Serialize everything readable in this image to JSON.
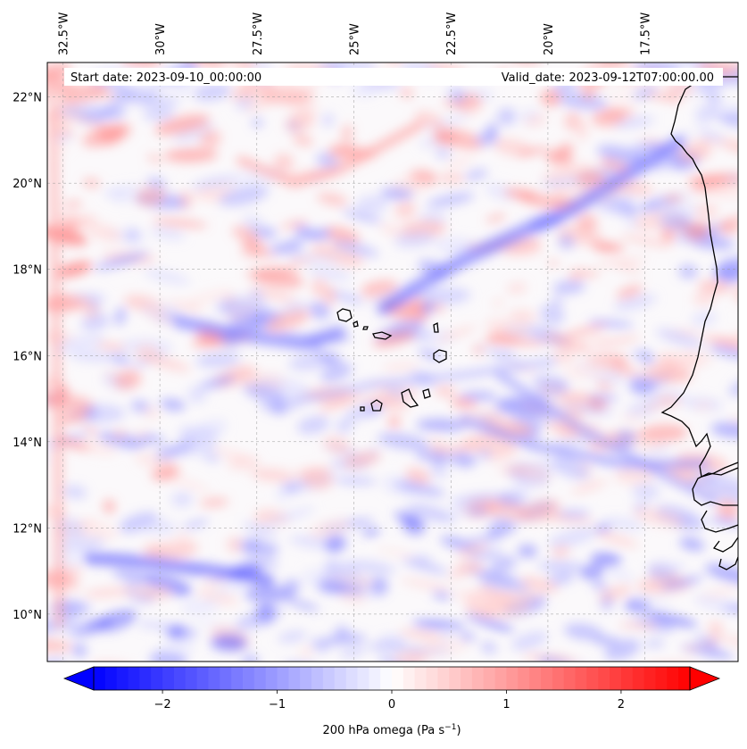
{
  "header": {
    "start_date": "Start date: 2023-09-10_00:00:00",
    "valid_date": "Valid_date: 2023-09-12T07:00:00.00"
  },
  "map": {
    "projection": "lat-lon",
    "lon_range": [
      -32.9,
      -15.1
    ],
    "lat_range": [
      8.9,
      22.8
    ],
    "gridlines": true,
    "lon_ticks": [
      {
        "value": -32.5,
        "label": "32.5°W"
      },
      {
        "value": -30,
        "label": "30°W"
      },
      {
        "value": -27.5,
        "label": "27.5°W"
      },
      {
        "value": -25,
        "label": "25°W"
      },
      {
        "value": -22.5,
        "label": "22.5°W"
      },
      {
        "value": -20,
        "label": "20°W"
      },
      {
        "value": -17.5,
        "label": "17.5°W"
      }
    ],
    "lat_ticks": [
      {
        "value": 22,
        "label": "22°N"
      },
      {
        "value": 20,
        "label": "20°N"
      },
      {
        "value": 18,
        "label": "18°N"
      },
      {
        "value": 16,
        "label": "16°N"
      },
      {
        "value": 14,
        "label": "14°N"
      },
      {
        "value": 12,
        "label": "12°N"
      },
      {
        "value": 10,
        "label": "10°N"
      }
    ],
    "features": [
      "coastline-west-africa",
      "cape-verde-islands"
    ]
  },
  "colorbar": {
    "colormap": "bwr",
    "min": -2.6,
    "max": 2.6,
    "extend": "both",
    "ticks": [
      {
        "value": -2,
        "label": "−2"
      },
      {
        "value": -1,
        "label": "−1"
      },
      {
        "value": 0,
        "label": "0"
      },
      {
        "value": 1,
        "label": "1"
      },
      {
        "value": 2,
        "label": "2"
      }
    ],
    "label_main": "200 hPa omega (Pa s",
    "label_exp": "−1",
    "label_end": ")",
    "low_color": "#0000ff",
    "mid_color": "#ffffff",
    "high_color": "#ff0000"
  }
}
